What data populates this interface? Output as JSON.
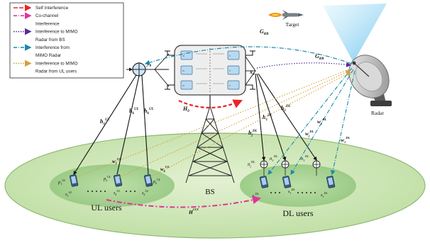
{
  "legend": {
    "entries": [
      {
        "label": "Self Interference",
        "color": "#e8262a"
      },
      {
        "label": "Co-channel",
        "color": "#e0349a"
      },
      {
        "label": "Interference",
        "color": "#e0349a"
      },
      {
        "label": "Interference to MIMO",
        "color": "#5a2a9c"
      },
      {
        "label": "Radar from BS",
        "color": "#5a2a9c"
      },
      {
        "label": "Interference from",
        "color": "#1a8aa8"
      },
      {
        "label": "MIMO Radar",
        "color": "#1a8aa8"
      },
      {
        "label": "Interference to MIMO",
        "color": "#d4a23a"
      },
      {
        "label": "Radar from UL users",
        "color": "#d4a23a"
      }
    ]
  },
  "labels": {
    "target": "Target",
    "radar": "Radar",
    "bs": "BS",
    "ul_users": "UL users",
    "dl_users": "DL users",
    "g_rb_top": "G",
    "g_rb_top_sub": "RB",
    "g_rb_mid": "G",
    "g_rb_mid_sub": "RB",
    "n0": "n",
    "n0_sub": "0",
    "y0": "y",
    "y0_sub": "0",
    "x0": "x",
    "x0_sub": "0",
    "h0": "H",
    "h0_sub": "0",
    "h1_ul": "h",
    "h1_ul_sub": "1",
    "h1_ul_sup": "UL",
    "hk_ul": "h",
    "hk_ul_sub": "k",
    "hk_ul_sup": "UL",
    "h1_dl": "h",
    "h1_dl_sub": "1",
    "h1_dl_sup": "DL",
    "hj_dl": "h",
    "hj_dl_sub": "j",
    "hj_dl_sup": "DL",
    "w1_ul": "w",
    "w1_ul_sub": "1",
    "w1_ul_sup": "UL",
    "wk_ul": "w",
    "wk_ul_sub": "k",
    "wk_ul_sup": "UL",
    "w1_dl": "w",
    "w1_dl_sub": "1",
    "w1_dl_sup": "DL",
    "wj_dl": "w",
    "wj_dl_sub": "j",
    "wj_dl_sup": "DL",
    "s1_ul": "s",
    "s1_ul_sub": "1",
    "s1_ul_sup": "UL",
    "sk_ul": "s",
    "sk_ul_sub": "k",
    "sk_ul_sup": "UL",
    "p1_ul": "p",
    "p1_ul_sub": "1",
    "p1_ul_sup": "UL",
    "pk_ul": "p",
    "pk_ul_sub": "k",
    "pk_ul_sup": "UL",
    "s1_dl": "s",
    "s1_dl_sub": "1",
    "s1_dl_sup": "DL",
    "sj_dl": "s",
    "sj_dl_sub": "j",
    "sj_dl_sup": "DL",
    "n1_dl": "n",
    "n1_dl_sub": "1",
    "n1_dl_sup": "DL",
    "nj_dl": "n",
    "nj_dl_sub": "j",
    "nj_dl_sup": "DL",
    "h_cci": "H",
    "h_cci_sup": "CCI"
  },
  "colors": {
    "ground_fill": "#cfe7b6",
    "ground_stroke": "#8fb874",
    "cluster_fill": "#9fcf88",
    "self_interference": "#e8262a",
    "co_channel": "#e0349a",
    "bs_to_radar": "#5a2a9c",
    "radar_interference": "#1a8aa8",
    "ul_to_radar": "#d4a23a"
  }
}
